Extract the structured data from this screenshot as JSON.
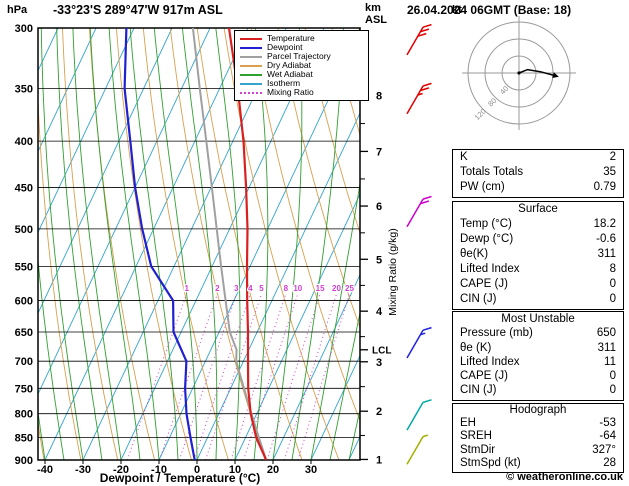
{
  "header": {
    "pressure_unit": "hPa",
    "station": "-33°23'S 289°47'W 917m ASL",
    "km_unit_line1": "km",
    "km_unit_line2": "ASL",
    "datetime": "26.04.2024 06GMT (Base: 18)"
  },
  "side_labels": {
    "mixing_ratio_axis": "Mixing Ratio (g/kg)",
    "lcl": "LCL",
    "hodograph_unit": "kt"
  },
  "footer": {
    "x_axis_label": "Dewpoint / Temperature (°C)",
    "copyright": "© weatheronline.co.uk"
  },
  "legend": {
    "items": [
      {
        "label": "Temperature",
        "color": "#d82020",
        "style": "solid"
      },
      {
        "label": "Dewpoint",
        "color": "#2020d0",
        "style": "solid"
      },
      {
        "label": "Parcel Trajectory",
        "color": "#a0a0a0",
        "style": "solid"
      },
      {
        "label": "Dry Adiabat",
        "color": "#d8a050",
        "style": "solid"
      },
      {
        "label": "Wet Adiabat",
        "color": "#30a030",
        "style": "solid"
      },
      {
        "label": "Isotherm",
        "color": "#35a4cc",
        "style": "solid"
      },
      {
        "label": "Mixing Ratio",
        "color": "#d040d0",
        "style": "dotted"
      }
    ]
  },
  "tables": {
    "indices": {
      "rows": [
        {
          "label": "K",
          "value": "2"
        },
        {
          "label": "Totals Totals",
          "value": "35"
        },
        {
          "label": "PW (cm)",
          "value": "0.79"
        }
      ]
    },
    "surface": {
      "title": "Surface",
      "rows": [
        {
          "label": "Temp (°C)",
          "value": "18.2"
        },
        {
          "label": "Dewp (°C)",
          "value": "-0.6"
        },
        {
          "label": "θe(K)",
          "value": "311"
        },
        {
          "label": "Lifted Index",
          "value": "8"
        },
        {
          "label": "CAPE (J)",
          "value": "0"
        },
        {
          "label": "CIN (J)",
          "value": "0"
        }
      ]
    },
    "most_unstable": {
      "title": "Most Unstable",
      "rows": [
        {
          "label": "Pressure (mb)",
          "value": "650"
        },
        {
          "label": "θe (K)",
          "value": "311"
        },
        {
          "label": "Lifted Index",
          "value": "11"
        },
        {
          "label": "CAPE (J)",
          "value": "0"
        },
        {
          "label": "CIN (J)",
          "value": "0"
        }
      ]
    },
    "hodograph": {
      "title": "Hodograph",
      "rows": [
        {
          "label": "EH",
          "value": "-53"
        },
        {
          "label": "SREH",
          "value": "-64"
        },
        {
          "label": "StmDir",
          "value": "327°"
        },
        {
          "label": "StmSpd (kt)",
          "value": "28"
        }
      ]
    }
  },
  "chart_data": {
    "type": "skewt_log_p_sounding",
    "pressure_range": [
      300,
      900
    ],
    "pressure_ticks": [
      300,
      350,
      400,
      450,
      500,
      550,
      600,
      650,
      700,
      750,
      800,
      850,
      900
    ],
    "temp_ticks_c": [
      -40,
      -30,
      -20,
      -10,
      0,
      10,
      20,
      30
    ],
    "isotherm_step_c": 10,
    "dry_adiabats_theta_k": {
      "min": 240,
      "max": 400,
      "step": 10
    },
    "wet_adiabats_start_c": {
      "min": -40,
      "max": 40,
      "step": 5
    },
    "mixing_ratio_lines_gkg": [
      1,
      2,
      3,
      4,
      5,
      8,
      10,
      15,
      20,
      25
    ],
    "mixing_ratio_top_p": 590,
    "km_asl_ticks": [
      1,
      2,
      3,
      4,
      5,
      6,
      7,
      8
    ],
    "lcl_pressure_hpa": 680,
    "colors": {
      "temperature": "#d82020",
      "dewpoint": "#2020d0",
      "parcel": "#a0a0a0",
      "dry_adiabat": "#d8a050",
      "wet_adiabat": "#30a030",
      "isotherm": "#35a4cc",
      "mixing_ratio": "#d040d0"
    },
    "temperature_profile_p_c": [
      [
        900,
        18.2
      ],
      [
        850,
        12.8
      ],
      [
        800,
        8.4
      ],
      [
        750,
        4.6
      ],
      [
        700,
        1.2
      ],
      [
        650,
        -2.4
      ],
      [
        600,
        -6.5
      ],
      [
        550,
        -10.8
      ],
      [
        500,
        -15.3
      ],
      [
        450,
        -20.8
      ],
      [
        400,
        -27.2
      ],
      [
        350,
        -35.2
      ],
      [
        300,
        -45.0
      ]
    ],
    "dewpoint_profile_p_c": [
      [
        900,
        -0.6
      ],
      [
        850,
        -4.5
      ],
      [
        800,
        -8.5
      ],
      [
        750,
        -12.0
      ],
      [
        700,
        -15.0
      ],
      [
        650,
        -22.0
      ],
      [
        600,
        -26.0
      ],
      [
        550,
        -36.0
      ],
      [
        500,
        -43.0
      ],
      [
        450,
        -50.0
      ],
      [
        400,
        -57.0
      ],
      [
        350,
        -65.0
      ],
      [
        300,
        -72.0
      ]
    ],
    "parcel_profile_p_c": [
      [
        900,
        18.2
      ],
      [
        850,
        13.5
      ],
      [
        800,
        8.6
      ],
      [
        750,
        3.5
      ],
      [
        700,
        -1.9
      ],
      [
        680,
        -3.2
      ],
      [
        650,
        -7.2
      ],
      [
        600,
        -12.2
      ],
      [
        550,
        -17.6
      ],
      [
        500,
        -23.4
      ],
      [
        450,
        -29.8
      ],
      [
        400,
        -37.0
      ],
      [
        350,
        -45.2
      ],
      [
        300,
        -54.5
      ]
    ],
    "wind_barbs": [
      {
        "pressure": 310,
        "speed_kt": 30,
        "color": "#e00000"
      },
      {
        "pressure": 360,
        "speed_kt": 25,
        "color": "#e00000"
      },
      {
        "pressure": 480,
        "speed_kt": 20,
        "color": "#cc00cc"
      },
      {
        "pressure": 670,
        "speed_kt": 15,
        "color": "#2020e0"
      },
      {
        "pressure": 805,
        "speed_kt": 10,
        "color": "#00a8a8"
      },
      {
        "pressure": 878,
        "speed_kt": 5,
        "color": "#a0b000"
      }
    ],
    "hodograph": {
      "rings_kt": [
        40,
        80,
        120
      ],
      "trace_kt": [
        [
          0,
          0
        ],
        [
          20,
          8
        ],
        [
          50,
          3
        ],
        [
          80,
          -5
        ]
      ]
    }
  }
}
